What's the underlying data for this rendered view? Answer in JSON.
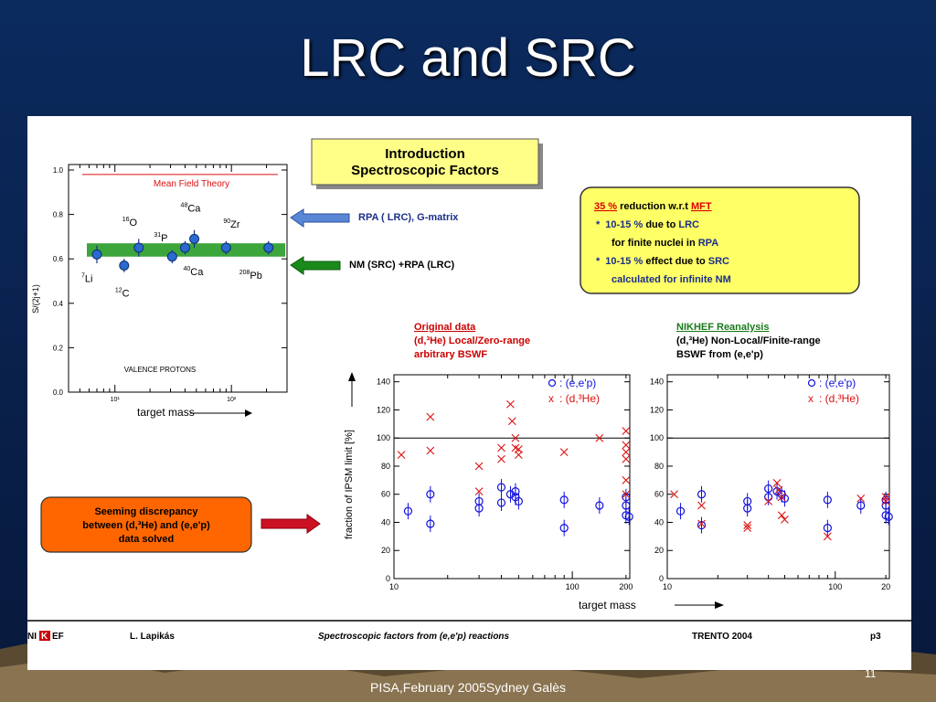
{
  "slide": {
    "title": "LRC and SRC",
    "footer": "PISA,February 2005Sydney Galès",
    "page_number": "11"
  },
  "intro_box": {
    "line1": "Introduction",
    "line2": "Spectroscopic Factors"
  },
  "arrows": {
    "rpa": "RPA ( LRC), G-matrix",
    "nm": "NM (SRC) +RPA (LRC)"
  },
  "yellow_box": {
    "l1_pct": "35 %",
    "l1_mid": " reduction w.r.t ",
    "l1_mft": "MFT",
    "l2_bullet": "*",
    "l2_pct": "10-15 %",
    "l2_mid": " due to ",
    "l2_lrc": "LRC",
    "l3_pre": "for finite nuclei in ",
    "l3_rpa": "RPA",
    "l4_bullet": "*",
    "l4_pct": "10-15 %",
    "l4_mid": " effect due to ",
    "l4_src": "SRC",
    "l5": "calculated for infinite NM"
  },
  "orange_box": {
    "line1": "Seeming discrepancy",
    "line2": "between (d,³He) and (e,e'p)",
    "line3": "data solved"
  },
  "original_header": {
    "line1": "Original data",
    "line2": "(d,³He)  Local/Zero-range",
    "line3": "arbitrary BSWF"
  },
  "nikhef_header": {
    "line1": "NIKHEF Reanalysis",
    "line2": "(d,³He)  Non-Local/Finite-range",
    "line3": "BSWF from (e,e'p)"
  },
  "bottom_bar": {
    "logo_pre": "NI",
    "logo_mid": "K",
    "logo_post": "EF",
    "author": "L. Lapikás",
    "caption": "Spectroscopic factors from (e,e'p) reactions",
    "conference": "TRENTO 2004",
    "page": "p3"
  },
  "colors": {
    "background": "#0b2a5e",
    "yellow_box": "#ffff66",
    "orange_box": "#ff6600",
    "band_green": "#3ca63c",
    "data_blue": "#1010dd",
    "data_red": "#dd1111",
    "arrow_blue": "#5a86d6",
    "arrow_green": "#1a8a1a",
    "arrow_red": "#cc1122"
  },
  "chart_data": [
    {
      "type": "scatter",
      "title": "",
      "xlabel": "target mass",
      "ylabel": "S/(2j+1)",
      "xscale": "log",
      "xlim": [
        4,
        300
      ],
      "ylim": [
        0,
        1.0
      ],
      "yticks": [
        "0.0",
        "0.2",
        "0.4",
        "0.6",
        "0.8",
        "1.0"
      ],
      "xticks": [
        "10¹",
        "10²"
      ],
      "reference_line": {
        "label": "Mean Field Theory",
        "y": 0.98
      },
      "band": {
        "y_low": 0.61,
        "y_high": 0.67
      },
      "inner_label": "VALENCE PROTONS",
      "points": [
        {
          "label_sup": "7",
          "label": "Li",
          "x": 7,
          "y": 0.62,
          "err": 0.04
        },
        {
          "label_sup": "12",
          "label": "C",
          "x": 12,
          "y": 0.57,
          "err": 0.03
        },
        {
          "label_sup": "16",
          "label": "O",
          "x": 16,
          "y": 0.65,
          "err": 0.04
        },
        {
          "label_sup": "31",
          "label": "P",
          "x": 31,
          "y": 0.61,
          "err": 0.03
        },
        {
          "label_sup": "40",
          "label": "Ca",
          "x": 40,
          "y": 0.65,
          "err": 0.03
        },
        {
          "label_sup": "48",
          "label": "Ca",
          "x": 48,
          "y": 0.69,
          "err": 0.04
        },
        {
          "label_sup": "90",
          "label": "Zr",
          "x": 90,
          "y": 0.65,
          "err": 0.03
        },
        {
          "label_sup": "208",
          "label": "Pb",
          "x": 208,
          "y": 0.65,
          "err": 0.03
        }
      ]
    },
    {
      "type": "scatter",
      "title": "",
      "xlabel": "target mass",
      "ylabel": "fraction of IPSM limit [%]",
      "xscale": "log",
      "xlim": [
        10,
        210
      ],
      "ylim": [
        0,
        145
      ],
      "yticks": [
        "0",
        "20",
        "40",
        "60",
        "80",
        "100",
        "120",
        "140"
      ],
      "xticks": [
        "10",
        "100",
        "200"
      ],
      "reference_line": {
        "y": 100
      },
      "legend": [
        {
          "symbol": "o",
          "text": ": (e,e'p)"
        },
        {
          "symbol": "x",
          "text": ": (d,³He)"
        }
      ],
      "series": [
        {
          "name": "(e,e'p)",
          "marker": "circle",
          "points": [
            [
              12,
              48
            ],
            [
              16,
              60
            ],
            [
              16,
              39
            ],
            [
              30,
              50
            ],
            [
              30,
              55
            ],
            [
              40,
              54
            ],
            [
              40,
              65
            ],
            [
              45,
              60
            ],
            [
              48,
              62
            ],
            [
              48,
              58
            ],
            [
              50,
              55
            ],
            [
              90,
              56
            ],
            [
              90,
              36
            ],
            [
              142,
              52
            ],
            [
              200,
              58
            ],
            [
              200,
              52
            ],
            [
              200,
              45
            ],
            [
              208,
              44
            ]
          ]
        },
        {
          "name": "(d,³He)",
          "marker": "cross",
          "points": [
            [
              11,
              88
            ],
            [
              16,
              115
            ],
            [
              16,
              91
            ],
            [
              30,
              80
            ],
            [
              30,
              62
            ],
            [
              40,
              93
            ],
            [
              40,
              85
            ],
            [
              45,
              124
            ],
            [
              46,
              112
            ],
            [
              48,
              100
            ],
            [
              48,
              93
            ],
            [
              50,
              92
            ],
            [
              50,
              88
            ],
            [
              90,
              90
            ],
            [
              142,
              100
            ],
            [
              200,
              105
            ],
            [
              200,
              95
            ],
            [
              200,
              90
            ],
            [
              200,
              85
            ],
            [
              200,
              70
            ],
            [
              200,
              60
            ]
          ]
        }
      ]
    },
    {
      "type": "scatter",
      "title": "",
      "xlabel": "",
      "ylabel": "",
      "xscale": "log",
      "xlim": [
        10,
        210
      ],
      "ylim": [
        0,
        145
      ],
      "yticks": [
        "0",
        "20",
        "40",
        "60",
        "80",
        "100",
        "120",
        "140"
      ],
      "xticks": [
        "10",
        "100",
        "20"
      ],
      "reference_line": {
        "y": 100
      },
      "legend": [
        {
          "symbol": "o",
          "text": ": (e,e'p)"
        },
        {
          "symbol": "x",
          "text": ": (d,³He)"
        }
      ],
      "series": [
        {
          "name": "(e,e'p)",
          "marker": "circle",
          "points": [
            [
              12,
              48
            ],
            [
              16,
              60
            ],
            [
              16,
              38
            ],
            [
              30,
              50
            ],
            [
              30,
              55
            ],
            [
              40,
              58
            ],
            [
              40,
              64
            ],
            [
              45,
              62
            ],
            [
              48,
              60
            ],
            [
              50,
              57
            ],
            [
              90,
              56
            ],
            [
              90,
              36
            ],
            [
              142,
              52
            ],
            [
              200,
              56
            ],
            [
              200,
              52
            ],
            [
              200,
              45
            ],
            [
              208,
              44
            ]
          ]
        },
        {
          "name": "(d,³He)",
          "marker": "cross",
          "points": [
            [
              11,
              60
            ],
            [
              16,
              52
            ],
            [
              16,
              39
            ],
            [
              30,
              38
            ],
            [
              30,
              36
            ],
            [
              40,
              55
            ],
            [
              45,
              68
            ],
            [
              46,
              63
            ],
            [
              48,
              58
            ],
            [
              48,
              45
            ],
            [
              50,
              42
            ],
            [
              90,
              30
            ],
            [
              142,
              57
            ],
            [
              200,
              58
            ],
            [
              200,
              55
            ]
          ]
        }
      ]
    }
  ]
}
